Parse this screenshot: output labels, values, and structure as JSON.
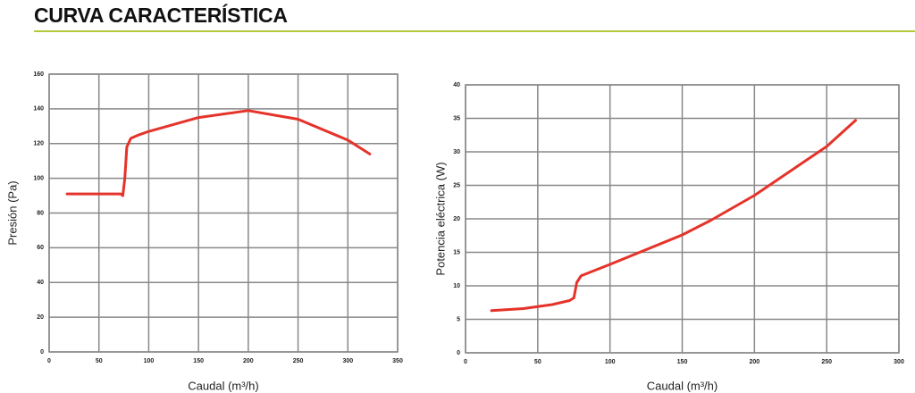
{
  "title": "CURVA CARACTERÍSTICA",
  "chart_data": [
    {
      "type": "line",
      "ylabel": "Presión (Pa)",
      "xlabel": "Caudal (m³/h)",
      "xlim": [
        0,
        350
      ],
      "xticks": [
        0,
        50,
        100,
        150,
        200,
        250,
        300,
        350
      ],
      "ylim": [
        0,
        160
      ],
      "yticks": [
        0,
        20,
        40,
        60,
        80,
        100,
        120,
        140,
        160
      ],
      "grid": true,
      "series": [
        {
          "color": "#e5332a",
          "x": [
            18,
            72,
            74,
            76,
            78,
            82,
            90,
            100,
            150,
            200,
            250,
            300,
            322
          ],
          "values": [
            91,
            91,
            90,
            100,
            118,
            123,
            125,
            127,
            135,
            139,
            134,
            122,
            114
          ]
        }
      ]
    },
    {
      "type": "line",
      "ylabel": "Potencia eléctrica (W)",
      "xlabel": "Caudal (m³/h)",
      "xlim": [
        0,
        300
      ],
      "xticks": [
        0,
        50,
        100,
        150,
        200,
        250,
        300
      ],
      "ylim": [
        0,
        40
      ],
      "yticks": [
        0,
        5,
        10,
        15,
        20,
        25,
        30,
        35,
        40
      ],
      "grid": true,
      "series": [
        {
          "color": "#e5332a",
          "x": [
            18,
            40,
            60,
            72,
            75,
            77,
            80,
            100,
            150,
            170,
            200,
            250,
            270
          ],
          "values": [
            6.3,
            6.6,
            7.2,
            7.8,
            8.2,
            10.5,
            11.5,
            13.2,
            17.6,
            19.8,
            23.5,
            30.8,
            34.7
          ]
        }
      ]
    }
  ]
}
